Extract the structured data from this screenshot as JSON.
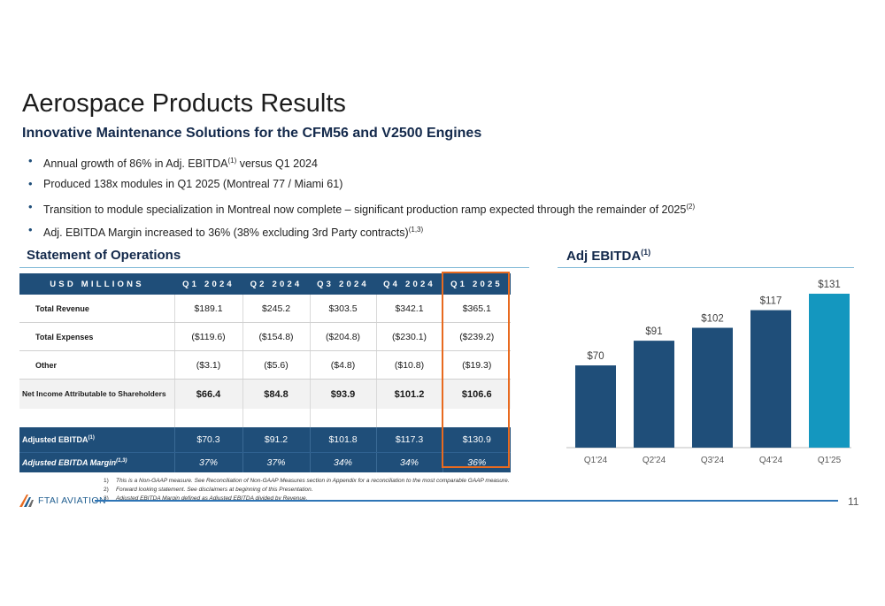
{
  "header": {
    "title": "Aerospace Products Results",
    "subtitle": "Innovative Maintenance Solutions for the CFM56 and V2500 Engines"
  },
  "bullets": [
    {
      "pre": "Annual growth of 86% in Adj. EBITDA",
      "sup": "(1)",
      "post": " versus Q1 2024"
    },
    {
      "pre": "Produced 138x modules in Q1 2025 (Montreal 77 / Miami 61)",
      "sup": "",
      "post": ""
    },
    {
      "pre": "Transition to module specialization in Montreal now complete – significant production ramp expected through the remainder of 2025",
      "sup": "(2)",
      "post": ""
    },
    {
      "pre": "Adj. EBITDA Margin increased to 36% (38% excluding 3rd Party contracts)",
      "sup": "(1,3)",
      "post": ""
    }
  ],
  "statement": {
    "heading": "Statement of Operations",
    "columns": [
      "USD MILLIONS",
      "Q1 2024",
      "Q2 2024",
      "Q3 2024",
      "Q4 2024",
      "Q1 2025"
    ],
    "rows": [
      {
        "label": "Total Revenue",
        "values": [
          "$189.1",
          "$245.2",
          "$303.5",
          "$342.1",
          "$365.1"
        ]
      },
      {
        "label": "Total Expenses",
        "values": [
          "($119.6)",
          "($154.8)",
          "($204.8)",
          "($230.1)",
          "($239.2)"
        ]
      },
      {
        "label": "Other",
        "values": [
          "($3.1)",
          "($5.6)",
          "($4.8)",
          "($10.8)",
          "($19.3)"
        ]
      },
      {
        "label": "Net Income Attributable to Shareholders",
        "values": [
          "$66.4",
          "$84.8",
          "$93.9",
          "$101.2",
          "$106.6"
        ]
      }
    ],
    "adjusted_ebitda": {
      "label": "Adjusted EBITDA",
      "sup": "(1)",
      "values": [
        "$70.3",
        "$91.2",
        "$101.8",
        "$117.3",
        "$130.9"
      ]
    },
    "adjusted_margin": {
      "label": "Adjusted EBITDA Margin",
      "sup": "(1,3)",
      "values": [
        "37%",
        "37%",
        "34%",
        "34%",
        "36%"
      ]
    }
  },
  "chart_data": {
    "type": "bar",
    "title": "Adj EBITDA",
    "title_sup": "(1)",
    "categories": [
      "Q1'24",
      "Q2'24",
      "Q3'24",
      "Q4'24",
      "Q1'25"
    ],
    "values": [
      70,
      91,
      102,
      117,
      131
    ],
    "labels": [
      "$70",
      "$91",
      "$102",
      "$117",
      "$131"
    ],
    "colors": [
      "#1f4e79",
      "#1f4e79",
      "#1f4e79",
      "#1f4e79",
      "#1497bf"
    ],
    "ylim": [
      0,
      131
    ],
    "grid": false,
    "legend": "none"
  },
  "footnotes": [
    {
      "n": "1)",
      "text": "This is a Non-GAAP measure. See Reconciliation of Non-GAAP Measures section in Appendix for a reconciliation to the most comparable GAAP measure."
    },
    {
      "n": "2)",
      "text": "Forward looking statement. See disclaimers at beginning of this Presentation."
    },
    {
      "n": "3)",
      "text": "Adjusted EBITDA Margin defined as Adjusted EBITDA divided by Revenue."
    }
  ],
  "footer": {
    "logo_text": "FTAI AVIATION",
    "page_number": "11"
  },
  "theme": {
    "navy": "#1f4e79",
    "highlight": "#e86a1f",
    "accent": "#1497bf"
  }
}
